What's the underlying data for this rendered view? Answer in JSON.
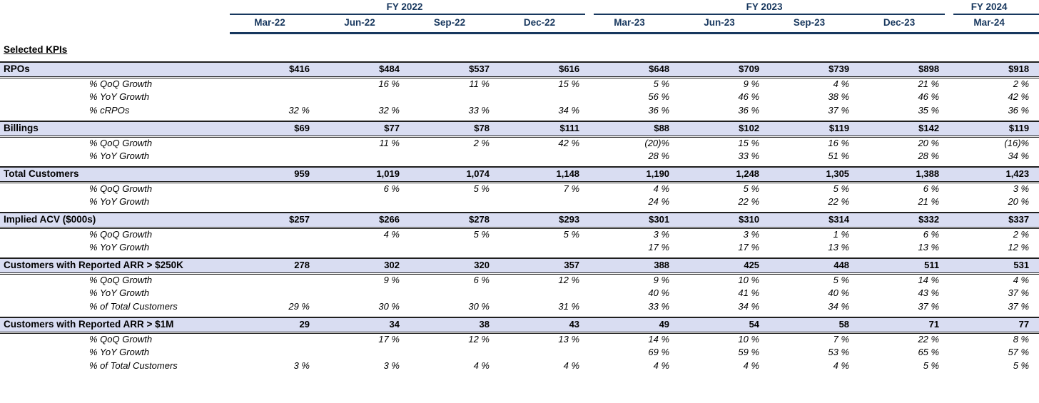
{
  "colors": {
    "header_navy": "#17375E",
    "band_fill": "#D9DDF2",
    "border_dark": "#1F1F1F",
    "background": "#FFFFFF"
  },
  "header": {
    "fiscal_years": [
      {
        "label": "FY 2022",
        "span": 4
      },
      {
        "label": "FY 2023",
        "span": 4
      },
      {
        "label": "FY 2024",
        "span": 1
      }
    ],
    "quarters": [
      "Mar-22",
      "Jun-22",
      "Sep-22",
      "Dec-22",
      "Mar-23",
      "Jun-23",
      "Sep-23",
      "Dec-23",
      "Mar-24"
    ]
  },
  "table": {
    "section_title": "Selected KPIs",
    "sections": [
      {
        "label": "RPOs",
        "values": [
          "$416",
          "$484",
          "$537",
          "$616",
          "$648",
          "$709",
          "$739",
          "$898",
          "$918"
        ],
        "subrows": [
          {
            "label": "% QoQ Growth",
            "values": [
              "",
              "16 %",
              "11 %",
              "15 %",
              "5 %",
              "9 %",
              "4 %",
              "21 %",
              "2 %"
            ]
          },
          {
            "label": "% YoY Growth",
            "values": [
              "",
              "",
              "",
              "",
              "56 %",
              "46 %",
              "38 %",
              "46 %",
              "42 %"
            ]
          },
          {
            "label": "% cRPOs",
            "values": [
              "32 %",
              "32 %",
              "33 %",
              "34 %",
              "36 %",
              "36 %",
              "37 %",
              "35 %",
              "36 %"
            ]
          }
        ]
      },
      {
        "label": "Billings",
        "values": [
          "$69",
          "$77",
          "$78",
          "$111",
          "$88",
          "$102",
          "$119",
          "$142",
          "$119"
        ],
        "subrows": [
          {
            "label": "% QoQ Growth",
            "values": [
              "",
              "11 %",
              "2 %",
              "42 %",
              "(20)%",
              "15 %",
              "16 %",
              "20 %",
              "(16)%"
            ]
          },
          {
            "label": "% YoY Growth",
            "values": [
              "",
              "",
              "",
              "",
              "28 %",
              "33 %",
              "51 %",
              "28 %",
              "34 %"
            ]
          }
        ]
      },
      {
        "label": "Total Customers",
        "values": [
          "959",
          "1,019",
          "1,074",
          "1,148",
          "1,190",
          "1,248",
          "1,305",
          "1,388",
          "1,423"
        ],
        "subrows": [
          {
            "label": "% QoQ Growth",
            "values": [
              "",
              "6 %",
              "5 %",
              "7 %",
              "4 %",
              "5 %",
              "5 %",
              "6 %",
              "3 %"
            ]
          },
          {
            "label": "% YoY Growth",
            "values": [
              "",
              "",
              "",
              "",
              "24 %",
              "22 %",
              "22 %",
              "21 %",
              "20 %"
            ]
          }
        ]
      },
      {
        "label": "Implied ACV ($000s)",
        "values": [
          "$257",
          "$266",
          "$278",
          "$293",
          "$301",
          "$310",
          "$314",
          "$332",
          "$337"
        ],
        "subrows": [
          {
            "label": "% QoQ Growth",
            "values": [
              "",
              "4 %",
              "5 %",
              "5 %",
              "3 %",
              "3 %",
              "1 %",
              "6 %",
              "2 %"
            ]
          },
          {
            "label": "% YoY Growth",
            "values": [
              "",
              "",
              "",
              "",
              "17 %",
              "17 %",
              "13 %",
              "13 %",
              "12 %"
            ]
          }
        ]
      },
      {
        "label": "Customers with Reported ARR > $250K",
        "values": [
          "278",
          "302",
          "320",
          "357",
          "388",
          "425",
          "448",
          "511",
          "531"
        ],
        "subrows": [
          {
            "label": "% QoQ Growth",
            "values": [
              "",
              "9 %",
              "6 %",
              "12 %",
              "9 %",
              "10 %",
              "5 %",
              "14 %",
              "4 %"
            ]
          },
          {
            "label": "% YoY Growth",
            "values": [
              "",
              "",
              "",
              "",
              "40 %",
              "41 %",
              "40 %",
              "43 %",
              "37 %"
            ]
          },
          {
            "label": "% of Total Customers",
            "values": [
              "29 %",
              "30 %",
              "30 %",
              "31 %",
              "33 %",
              "34 %",
              "34 %",
              "37 %",
              "37 %"
            ]
          }
        ]
      },
      {
        "label": "Customers with Reported ARR > $1M",
        "values": [
          "29",
          "34",
          "38",
          "43",
          "49",
          "54",
          "58",
          "71",
          "77"
        ],
        "subrows": [
          {
            "label": "% QoQ Growth",
            "values": [
              "",
              "17 %",
              "12 %",
              "13 %",
              "14 %",
              "10 %",
              "7 %",
              "22 %",
              "8 %"
            ]
          },
          {
            "label": "% YoY Growth",
            "values": [
              "",
              "",
              "",
              "",
              "69 %",
              "59 %",
              "53 %",
              "65 %",
              "57 %"
            ]
          },
          {
            "label": "% of Total Customers",
            "values": [
              "3 %",
              "3 %",
              "4 %",
              "4 %",
              "4 %",
              "4 %",
              "4 %",
              "5 %",
              "5 %"
            ]
          }
        ]
      }
    ]
  }
}
